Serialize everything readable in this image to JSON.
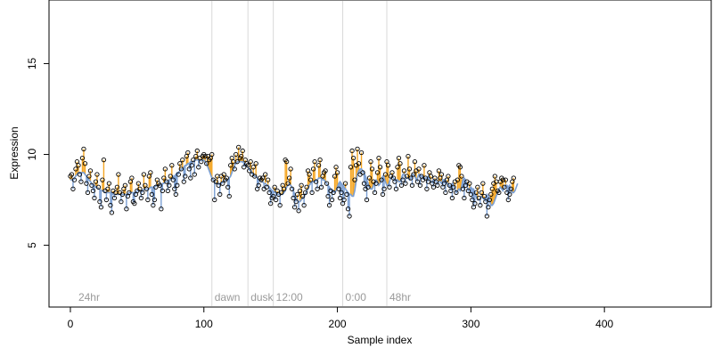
{
  "chart_data": {
    "type": "scatter",
    "title": "",
    "xlabel": "Sample index",
    "ylabel": "Expression",
    "xlim": [
      -16,
      480
    ],
    "ylim": [
      1.6,
      18.5
    ],
    "x_ticks": [
      0,
      100,
      200,
      300,
      400
    ],
    "y_ticks": [
      5,
      10,
      15
    ],
    "grid": false,
    "legend": "none",
    "vertical_markers": [
      {
        "x": 4,
        "label": "24hr",
        "line": false
      },
      {
        "x": 106,
        "label": "dawn",
        "line": true
      },
      {
        "x": 133,
        "label": "dusk",
        "line": true
      },
      {
        "x": 152,
        "label": "12:00",
        "line": true
      },
      {
        "x": 204,
        "label": "0:00",
        "line": true
      },
      {
        "x": 237,
        "label": "48hr",
        "line": true
      }
    ],
    "series": [
      {
        "kind": "observed-points",
        "values": [
          8.8,
          8.9,
          8.1,
          8.6,
          9.2,
          9.6,
          9.4,
          8.9,
          8.5,
          9.8,
          10.3,
          9.5,
          8.4,
          7.9,
          8.8,
          9.1,
          8.3,
          8.0,
          7.6,
          8.5,
          8.9,
          8.2,
          7.4,
          7.1,
          8.6,
          9.7,
          8.0,
          7.5,
          8.1,
          8.4,
          7.2,
          6.8,
          8.0,
          7.6,
          7.9,
          8.2,
          8.9,
          7.9,
          7.4,
          7.8,
          8.1,
          8.3,
          7.0,
          7.7,
          7.9,
          8.5,
          8.7,
          7.4,
          7.3,
          7.8,
          8.0,
          8.4,
          8.1,
          7.6,
          7.9,
          8.9,
          8.3,
          8.1,
          7.5,
          8.8,
          9.0,
          7.8,
          7.2,
          7.5,
          8.2,
          8.6,
          8.4,
          8.3,
          7.0,
          8.0,
          8.7,
          9.2,
          8.5,
          8.0,
          8.3,
          8.8,
          9.4,
          8.6,
          8.1,
          7.8,
          8.3,
          8.9,
          9.5,
          9.2,
          9.7,
          8.5,
          8.8,
          9.9,
          10.1,
          9.2,
          8.7,
          9.4,
          9.7,
          8.9,
          9.9,
          10.2,
          9.3,
          9.8,
          9.6,
          9.9,
          10.0,
          9.9,
          9.5,
          9.9,
          9.7,
          9.8,
          10.0,
          8.6,
          7.5,
          8.5,
          8.8,
          8.3,
          7.8,
          8.8,
          8.4,
          8.9,
          8.6,
          8.7,
          8.2,
          7.7,
          9.4,
          9.8,
          9.6,
          9.2,
          10.0,
          9.6,
          10.4,
          9.8,
          9.9,
          10.2,
          9.3,
          9.7,
          9.5,
          9.4,
          9.1,
          9.6,
          8.9,
          9.3,
          8.8,
          9.5,
          8.1,
          8.3,
          8.7,
          8.6,
          8.7,
          8.1,
          8.9,
          8.2,
          8.6,
          7.9,
          7.3,
          7.6,
          7.7,
          8.2,
          7.5,
          8.0,
          7.8,
          7.2,
          7.9,
          8.3,
          8.1,
          9.7,
          9.6,
          8.4,
          8.7,
          9.2,
          8.1,
          7.6,
          7.1,
          7.4,
          7.8,
          6.9,
          8.0,
          8.3,
          7.7,
          7.2,
          7.9,
          8.2,
          9.1,
          8.9,
          8.6,
          7.9,
          9.2,
          9.6,
          8.5,
          8.1,
          9.4,
          9.7,
          8.2,
          8.8,
          9.0,
          9.1,
          8.4,
          7.7,
          7.2,
          8.0,
          7.5,
          7.9,
          8.8,
          9.3,
          9.0,
          8.1,
          7.6,
          7.9,
          7.3,
          7.5,
          8.4,
          7.8,
          7.0,
          6.6,
          9.3,
          10.2,
          9.8,
          8.6,
          9.4,
          10.3,
          9.5,
          8.9,
          10.1,
          9.0,
          8.4,
          8.1,
          7.5,
          8.2,
          8.7,
          9.6,
          9.2,
          8.5,
          7.9,
          8.4,
          9.0,
          9.8,
          9.3,
          8.6,
          7.8,
          8.1,
          8.9,
          9.6,
          9.4,
          8.2,
          8.8,
          9.0,
          8.7,
          8.5,
          8.1,
          9.3,
          9.8,
          9.5,
          8.3,
          8.6,
          9.1,
          8.4,
          8.8,
          9.9,
          9.2,
          8.7,
          8.3,
          8.9,
          9.6,
          9.1,
          8.5,
          9.2,
          8.3,
          8.8,
          8.6,
          9.4,
          8.7,
          8.1,
          8.5,
          9.0,
          8.8,
          8.4,
          8.2,
          8.7,
          8.5,
          8.3,
          9.1,
          8.7,
          8.9,
          8.2,
          8.4,
          7.9,
          8.6,
          8.8,
          8.3,
          8.0,
          7.6,
          8.2,
          8.5,
          7.9,
          8.6,
          9.4,
          9.3,
          8.8,
          8.1,
          7.6,
          8.3,
          8.5,
          8.0,
          8.4,
          7.8,
          7.5,
          7.1,
          7.3,
          7.9,
          8.2,
          7.6,
          7.2,
          7.9,
          8.4,
          7.7,
          7.4,
          6.6,
          7.1,
          7.5,
          7.8,
          8.1,
          8.4,
          8.8,
          8.5,
          8.0,
          7.9,
          8.5,
          8.7,
          8.6,
          8.2,
          8.6,
          7.9,
          7.5,
          7.8,
          8.1,
          8.5,
          8.7
        ],
        "colour_above": "#f5a623",
        "colour_below": "#7a9fd4"
      },
      {
        "kind": "smoothed-fit",
        "values": [
          8.6,
          8.6,
          8.6,
          8.7,
          8.8,
          8.9,
          9.0,
          9.0,
          9.0,
          9.0,
          9.0,
          8.9,
          8.8,
          8.7,
          8.6,
          8.5,
          8.4,
          8.3,
          8.3,
          8.2,
          8.2,
          8.1,
          8.1,
          8.0,
          8.0,
          8.0,
          7.9,
          7.9,
          7.9,
          7.9,
          7.9,
          7.9,
          7.8,
          7.8,
          7.8,
          7.8,
          7.8,
          7.8,
          7.8,
          7.8,
          7.8,
          7.8,
          7.8,
          7.8,
          7.9,
          7.9,
          7.9,
          7.9,
          7.9,
          7.9,
          8.0,
          8.0,
          8.0,
          8.0,
          8.0,
          8.1,
          8.1,
          8.1,
          8.1,
          8.1,
          8.2,
          8.2,
          8.2,
          8.2,
          8.3,
          8.3,
          8.3,
          8.3,
          8.3,
          8.4,
          8.4,
          8.5,
          8.5,
          8.5,
          8.6,
          8.6,
          8.7,
          8.8,
          8.8,
          8.9,
          9.0,
          9.0,
          9.1,
          9.2,
          9.2,
          9.3,
          9.4,
          9.4,
          9.5,
          9.5,
          9.6,
          9.6,
          9.6,
          9.7,
          9.7,
          9.7,
          9.7,
          9.7,
          9.7,
          9.7,
          9.7,
          9.6,
          9.5,
          9.3,
          9.1,
          8.9,
          8.7,
          8.6,
          8.5,
          8.4,
          8.4,
          8.4,
          8.4,
          8.4,
          8.5,
          8.5,
          8.6,
          8.6,
          8.6,
          8.7,
          8.8,
          9.0,
          9.2,
          9.4,
          9.5,
          9.6,
          9.6,
          9.6,
          9.6,
          9.6,
          9.5,
          9.5,
          9.4,
          9.3,
          9.2,
          9.1,
          9.0,
          8.9,
          8.8,
          8.8,
          8.7,
          8.6,
          8.6,
          8.5,
          8.5,
          8.4,
          8.4,
          8.3,
          8.3,
          8.2,
          8.1,
          8.0,
          8.0,
          7.9,
          7.9,
          7.8,
          7.8,
          7.8,
          7.8,
          7.8,
          7.9,
          8.0,
          8.2,
          8.3,
          8.4,
          8.3,
          8.2,
          8.0,
          7.8,
          7.6,
          7.5,
          7.4,
          7.4,
          7.5,
          7.6,
          7.7,
          7.8,
          8.0,
          8.1,
          8.3,
          8.4,
          8.5,
          8.5,
          8.5,
          8.6,
          8.6,
          8.7,
          8.7,
          8.7,
          8.6,
          8.6,
          8.5,
          8.4,
          8.3,
          8.2,
          8.1,
          8.0,
          8.0,
          7.9,
          8.0,
          8.2,
          8.4,
          8.5,
          8.4,
          8.3,
          8.2,
          8.1,
          8.0,
          7.9,
          7.8,
          7.8,
          7.7,
          7.7,
          8.0,
          8.5,
          8.9,
          9.1,
          9.2,
          9.2,
          9.1,
          9.0,
          8.8,
          8.6,
          8.4,
          8.2,
          8.1,
          8.1,
          8.3,
          8.5,
          8.6,
          8.5,
          8.3,
          8.4,
          8.6,
          8.8,
          8.7,
          8.5,
          8.3,
          8.3,
          8.5,
          8.7,
          8.8,
          8.7,
          8.6,
          8.6,
          8.6,
          8.5,
          8.5,
          8.7,
          8.9,
          8.9,
          8.8,
          8.7,
          8.7,
          8.6,
          8.7,
          8.9,
          8.9,
          8.8,
          8.6,
          8.7,
          8.9,
          8.9,
          8.8,
          8.8,
          8.7,
          8.7,
          8.7,
          8.8,
          8.7,
          8.5,
          8.5,
          8.6,
          8.6,
          8.5,
          8.4,
          8.5,
          8.5,
          8.4,
          8.6,
          8.6,
          8.6,
          8.4,
          8.4,
          8.2,
          8.3,
          8.4,
          8.3,
          8.1,
          7.9,
          8.0,
          8.1,
          8.0,
          8.2,
          8.6,
          8.7,
          8.6,
          8.3,
          8.0,
          8.1,
          8.2,
          8.1,
          8.1,
          7.9,
          7.7,
          7.5,
          7.5,
          7.6,
          7.7,
          7.6,
          7.5,
          7.6,
          7.8,
          7.7,
          7.5,
          7.2,
          7.2,
          7.3,
          7.5,
          7.7,
          7.9,
          8.1,
          8.2,
          8.1,
          8.0,
          8.2,
          8.3,
          8.3,
          8.2,
          8.3,
          8.1,
          7.9,
          7.9,
          8.0,
          8.2,
          8.4
        ],
        "colour": "#7a9fd4"
      }
    ]
  }
}
